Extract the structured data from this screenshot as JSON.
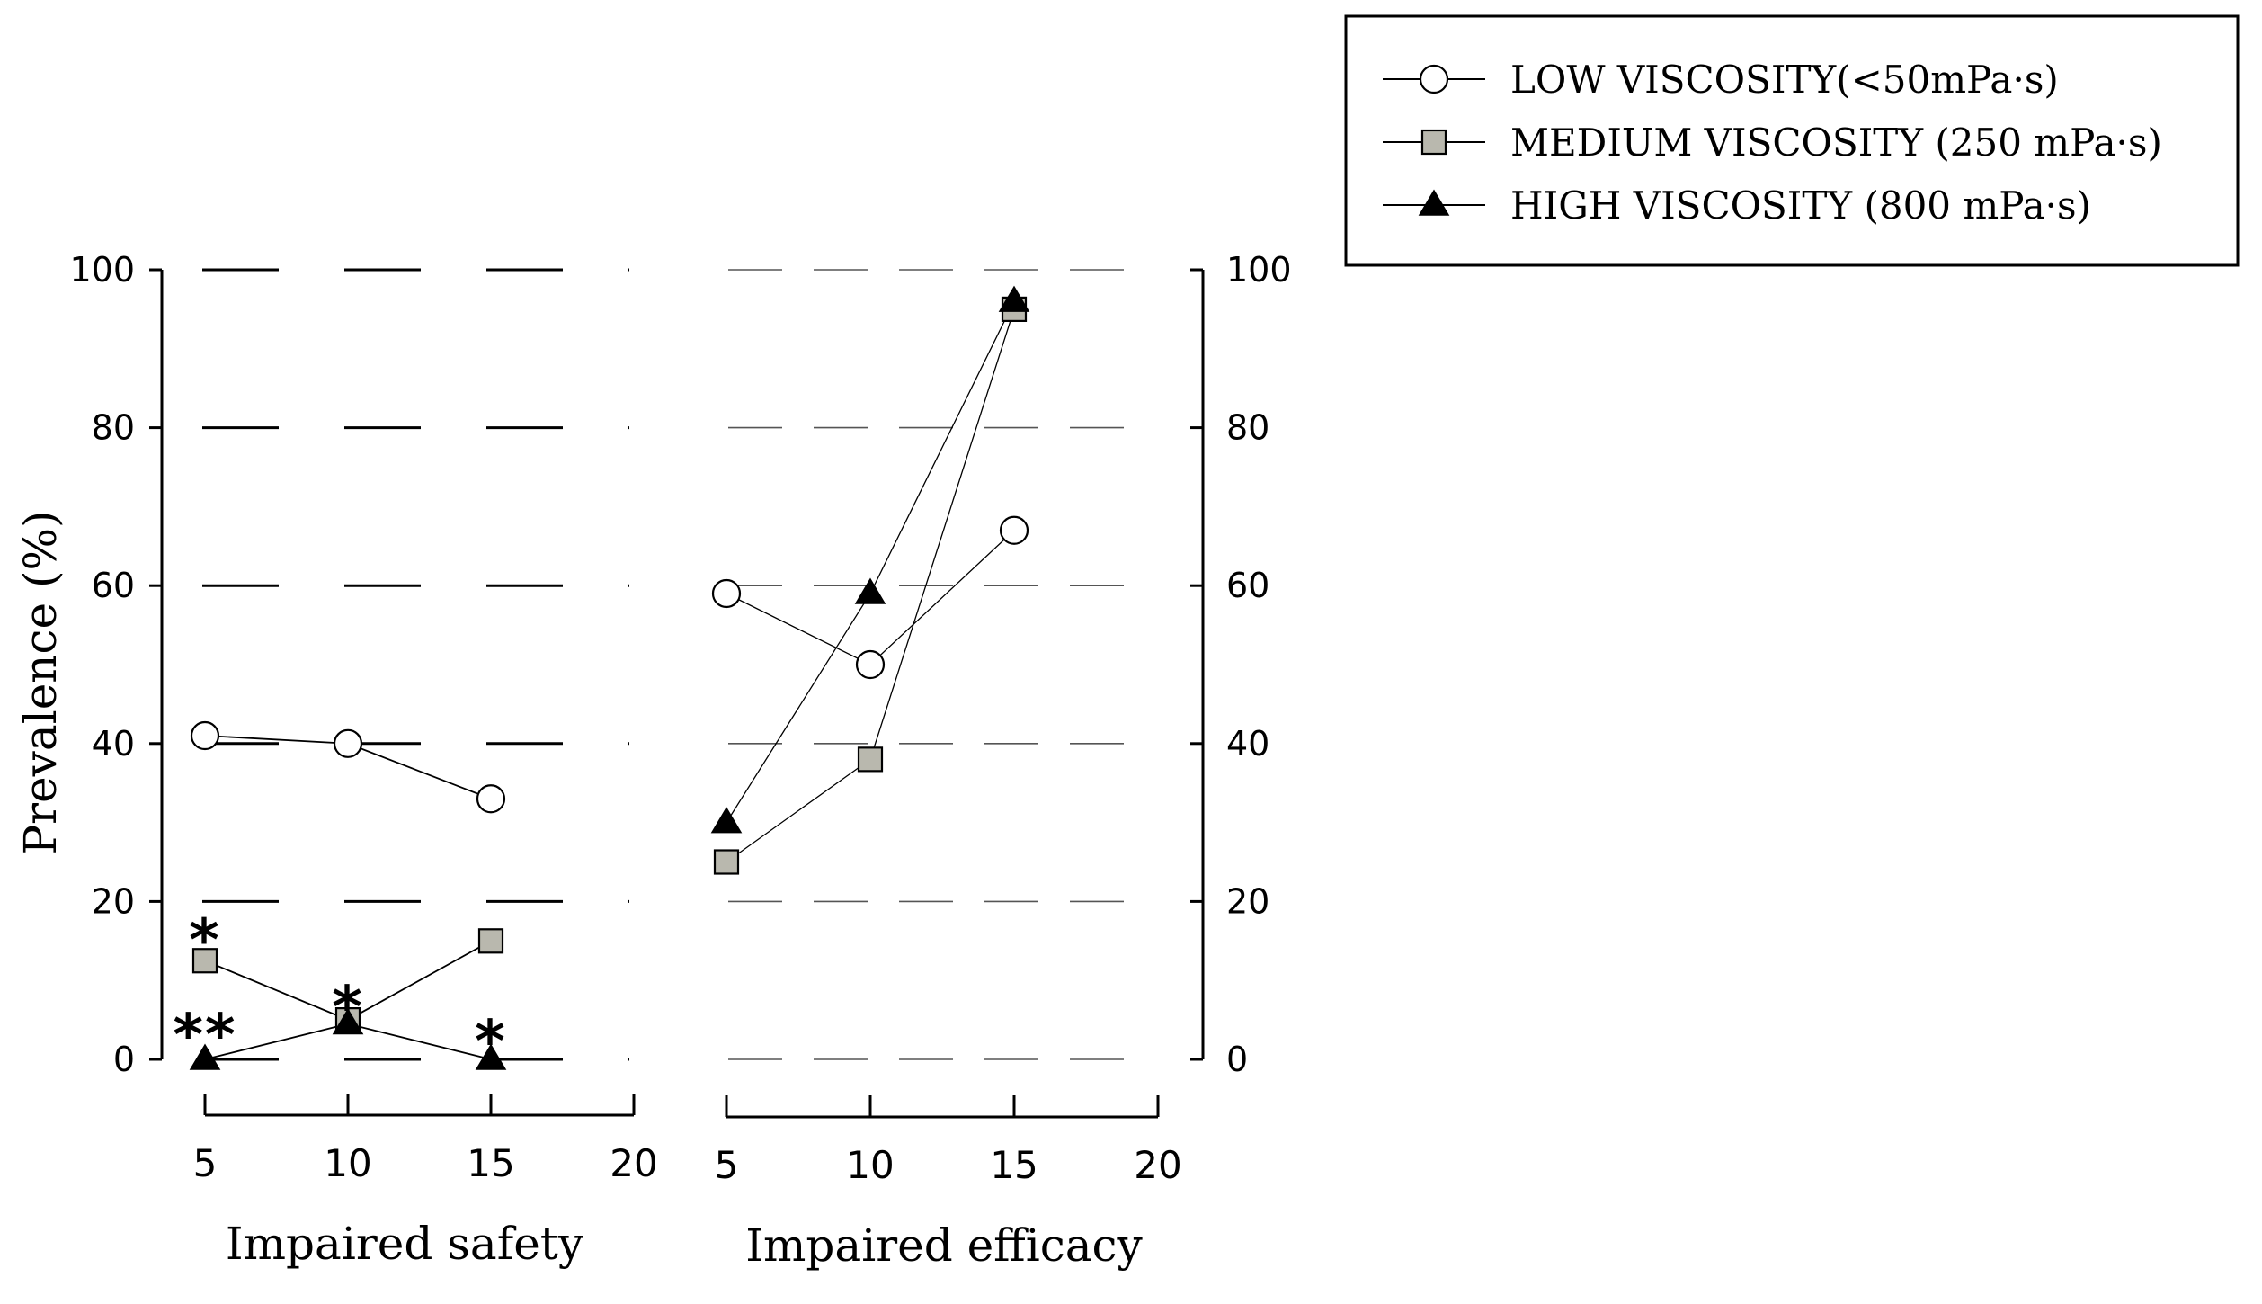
{
  "chart_data": [
    {
      "type": "line",
      "title": "",
      "xlabel": "Impaired safety",
      "ylabel": "Prevalence (%)",
      "x": [
        5,
        10,
        15
      ],
      "x_ticks": [
        5,
        10,
        15,
        20
      ],
      "xlim": [
        3.5,
        20
      ],
      "y_ticks": [
        0,
        20,
        40,
        60,
        80,
        100
      ],
      "ylim": [
        0,
        100
      ],
      "y_axis_side": "left",
      "grid": "dashed horizontal",
      "series": [
        {
          "name": "LOW VISCOSITY(<50mPa·s)",
          "marker": "open-circle",
          "values": [
            41,
            40,
            33
          ]
        },
        {
          "name": "MEDIUM VISCOSITY (250 mPa·s)",
          "marker": "gray-square",
          "values": [
            12.5,
            5,
            15
          ]
        },
        {
          "name": "HIGH VISCOSITY (800 mPa·s)",
          "marker": "filled-triangle",
          "values": [
            0,
            4.5,
            0
          ]
        }
      ],
      "annotations": [
        {
          "text": "*",
          "x": 5,
          "y": 16
        },
        {
          "text": "**",
          "x": 5,
          "y": 4
        },
        {
          "text": "*",
          "x": 10,
          "y": 7.5
        },
        {
          "text": "*",
          "x": 15,
          "y": 3.2
        }
      ]
    },
    {
      "type": "line",
      "title": "",
      "xlabel": "Impaired efficacy",
      "ylabel": "",
      "x": [
        5,
        10,
        15
      ],
      "x_ticks": [
        5,
        10,
        15,
        20
      ],
      "xlim": [
        3.5,
        20
      ],
      "y_ticks": [
        0,
        20,
        40,
        60,
        80,
        100
      ],
      "ylim": [
        0,
        100
      ],
      "y_axis_side": "right",
      "grid": "dashed horizontal",
      "series": [
        {
          "name": "LOW VISCOSITY(<50mPa·s)",
          "marker": "open-circle",
          "values": [
            59,
            50,
            67
          ]
        },
        {
          "name": "MEDIUM VISCOSITY (250 mPa·s)",
          "marker": "gray-square",
          "values": [
            25,
            38,
            95
          ]
        },
        {
          "name": "HIGH VISCOSITY (800 mPa·s)",
          "marker": "filled-triangle",
          "values": [
            30,
            59,
            96
          ]
        }
      ],
      "annotations": []
    }
  ],
  "legend": {
    "placement": "top-right",
    "entries": [
      {
        "label": "LOW VISCOSITY(<50mPa·s)",
        "marker": "open-circle"
      },
      {
        "label": "MEDIUM VISCOSITY (250 mPa·s)",
        "marker": "gray-square"
      },
      {
        "label": "HIGH VISCOSITY (800 mPa·s)",
        "marker": "filled-triangle"
      }
    ]
  },
  "colors": {
    "line": "#000000",
    "square_fill": "#b9b8ae",
    "circle_fill": "#ffffff",
    "triangle_fill": "#000000",
    "grid": "#000000"
  }
}
